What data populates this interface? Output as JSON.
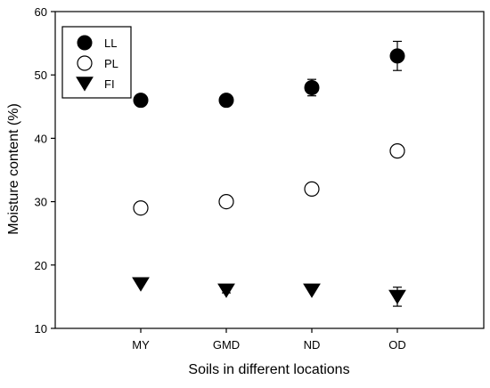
{
  "chart_data": {
    "type": "scatter",
    "title": "",
    "xlabel": "Soils in different locations",
    "ylabel": "Moisture content (%)",
    "categories": [
      "MY",
      "GMD",
      "ND",
      "OD"
    ],
    "ylim": [
      10,
      60
    ],
    "yticks": [
      10,
      20,
      30,
      40,
      50,
      60
    ],
    "grid": false,
    "legend_position": "top-left",
    "series": [
      {
        "name": "LL",
        "marker": "filled-circle",
        "color": "#000000",
        "values": [
          46,
          46,
          48,
          53
        ],
        "errors": [
          0.4,
          0.4,
          1.3,
          2.3
        ]
      },
      {
        "name": "PL",
        "marker": "open-circle",
        "color": "#000000",
        "values": [
          29,
          30,
          32,
          38
        ],
        "errors": [
          0,
          0,
          0.6,
          0
        ]
      },
      {
        "name": "FI",
        "marker": "filled-triangle-down",
        "color": "#000000",
        "values": [
          17,
          16,
          16,
          15
        ],
        "errors": [
          0,
          0.4,
          0,
          1.5
        ]
      }
    ]
  }
}
